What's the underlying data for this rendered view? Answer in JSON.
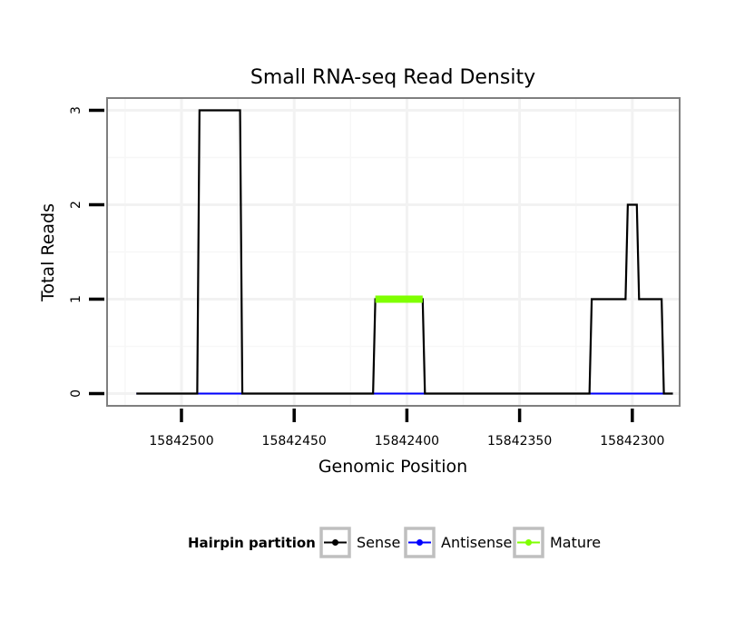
{
  "chart_data": {
    "type": "line",
    "title": "Small RNA-seq Read Density",
    "xlabel": "Genomic Position",
    "ylabel": "Total Reads",
    "x_reversed": true,
    "xlim": [
      15842533,
      15842279
    ],
    "ylim": [
      -0.13,
      3.13
    ],
    "x_ticks": [
      15842500,
      15842450,
      15842400,
      15842350,
      15842300
    ],
    "x_tick_labels": [
      "15842500",
      "15842450",
      "15842400",
      "15842350",
      "15842300"
    ],
    "y_ticks": [
      0,
      1,
      2,
      3
    ],
    "y_tick_labels": [
      "0",
      "1",
      "2",
      "3"
    ],
    "grid": true,
    "legend": {
      "title": "Hairpin partition",
      "position": "bottom",
      "entries": [
        {
          "label": "Sense",
          "color": "#000000"
        },
        {
          "label": "Antisense",
          "color": "#0000ff"
        },
        {
          "label": "Mature",
          "color": "#7fff00"
        }
      ]
    },
    "series": [
      {
        "name": "Sense",
        "color": "#000000",
        "x": [
          15842520,
          15842493,
          15842492,
          15842474,
          15842473,
          15842415,
          15842414,
          15842393,
          15842392,
          15842319,
          15842318,
          15842303,
          15842302,
          15842298,
          15842297,
          15842287,
          15842286,
          15842282
        ],
        "y": [
          0,
          0,
          3,
          3,
          0,
          0,
          1,
          1,
          0,
          0,
          1,
          1,
          2,
          2,
          1,
          1,
          0,
          0
        ]
      },
      {
        "name": "Antisense",
        "color": "#0000ff",
        "x": [
          15842520,
          15842282
        ],
        "y": [
          0,
          0
        ]
      },
      {
        "name": "Mature",
        "color": "#7fff00",
        "x": [
          15842414,
          15842393
        ],
        "y": [
          1,
          1
        ]
      }
    ]
  }
}
